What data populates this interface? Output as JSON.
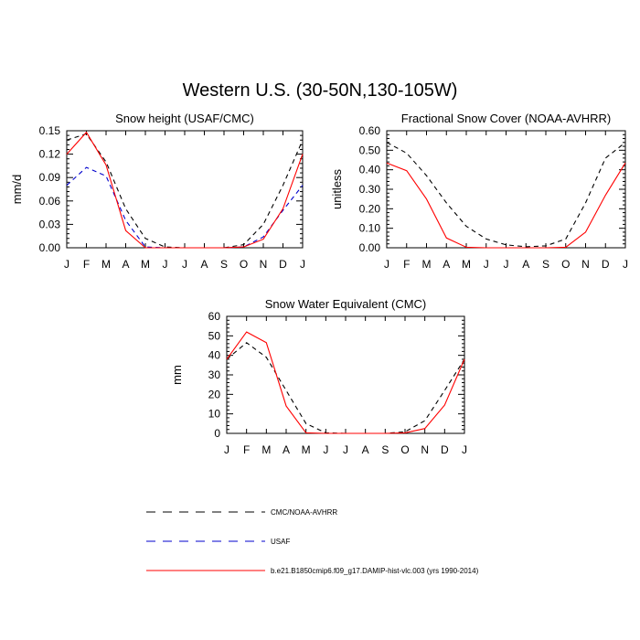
{
  "title": "Western U.S. (30-50N,130-105W)",
  "chart_data": [
    {
      "type": "line",
      "title": "Snow height (USAF/CMC)",
      "xlabel": "",
      "ylabel": "mm/d",
      "categories": [
        "J",
        "F",
        "M",
        "A",
        "M",
        "J",
        "J",
        "A",
        "S",
        "O",
        "N",
        "D",
        "J"
      ],
      "ylim": [
        0,
        0.15
      ],
      "yticks": [
        "0.00",
        "0.03",
        "0.06",
        "0.09",
        "0.12",
        "0.15"
      ],
      "series": [
        {
          "name": "CMC/NOAA-AVHRR",
          "color": "#000000",
          "dash": true,
          "values": [
            0.138,
            0.146,
            0.11,
            0.05,
            0.012,
            0.001,
            0.0,
            0.0,
            0.0,
            0.004,
            0.03,
            0.08,
            0.138
          ]
        },
        {
          "name": "USAF",
          "color": "#0000cc",
          "dash": true,
          "values": [
            0.08,
            0.103,
            0.092,
            0.035,
            0.001,
            0.0,
            0.0,
            0.0,
            0.0,
            0.001,
            0.014,
            0.048,
            0.08
          ]
        },
        {
          "name": "b.e21.B1850cmip6.f09_g17.DAMIP-hist-vlc.003 (yrs 1990-2014)",
          "color": "#ff0000",
          "dash": false,
          "values": [
            0.12,
            0.148,
            0.106,
            0.022,
            0.0,
            0.0,
            0.0,
            0.0,
            0.0,
            0.001,
            0.011,
            0.05,
            0.12
          ]
        }
      ]
    },
    {
      "type": "line",
      "title": "Fractional Snow Cover (NOAA-AVHRR)",
      "xlabel": "",
      "ylabel": "unitless",
      "categories": [
        "J",
        "F",
        "M",
        "A",
        "M",
        "J",
        "J",
        "A",
        "S",
        "O",
        "N",
        "D",
        "J"
      ],
      "ylim": [
        0,
        0.6
      ],
      "yticks": [
        "0.00",
        "0.10",
        "0.20",
        "0.30",
        "0.40",
        "0.50",
        "0.60"
      ],
      "series": [
        {
          "name": "CMC/NOAA-AVHRR",
          "color": "#000000",
          "dash": true,
          "values": [
            0.54,
            0.485,
            0.37,
            0.23,
            0.11,
            0.045,
            0.015,
            0.005,
            0.01,
            0.045,
            0.23,
            0.46,
            0.54
          ]
        },
        {
          "name": "b.e21.B1850cmip6.f09_g17.DAMIP-hist-vlc.003 (yrs 1990-2014)",
          "color": "#ff0000",
          "dash": false,
          "values": [
            0.435,
            0.395,
            0.25,
            0.05,
            0.003,
            0.0,
            0.0,
            0.0,
            0.0,
            0.003,
            0.08,
            0.27,
            0.435
          ]
        }
      ]
    },
    {
      "type": "line",
      "title": "Snow Water Equivalent (CMC)",
      "xlabel": "",
      "ylabel": "mm",
      "categories": [
        "J",
        "F",
        "M",
        "A",
        "M",
        "J",
        "J",
        "A",
        "S",
        "O",
        "N",
        "D",
        "J"
      ],
      "ylim": [
        0,
        60
      ],
      "yticks": [
        "0",
        "10",
        "20",
        "30",
        "40",
        "50",
        "60"
      ],
      "series": [
        {
          "name": "CMC/NOAA-AVHRR",
          "color": "#000000",
          "dash": true,
          "values": [
            38,
            46.5,
            39,
            22,
            5,
            0.3,
            0,
            0,
            0,
            0.8,
            6.5,
            22,
            38
          ]
        },
        {
          "name": "b.e21.B1850cmip6.f09_g17.DAMIP-hist-vlc.003 (yrs 1990-2014)",
          "color": "#ff0000",
          "dash": false,
          "values": [
            38,
            52,
            46.5,
            14,
            0.3,
            0,
            0,
            0,
            0,
            0.3,
            2.5,
            14.5,
            38
          ]
        }
      ]
    }
  ],
  "legend": [
    {
      "label": "CMC/NOAA-AVHRR",
      "color": "#000000",
      "dash": true
    },
    {
      "label": "USAF",
      "color": "#0000cc",
      "dash": true
    },
    {
      "label": "b.e21.B1850cmip6.f09_g17.DAMIP-hist-vlc.003 (yrs 1990-2014)",
      "color": "#ff0000",
      "dash": false
    }
  ]
}
